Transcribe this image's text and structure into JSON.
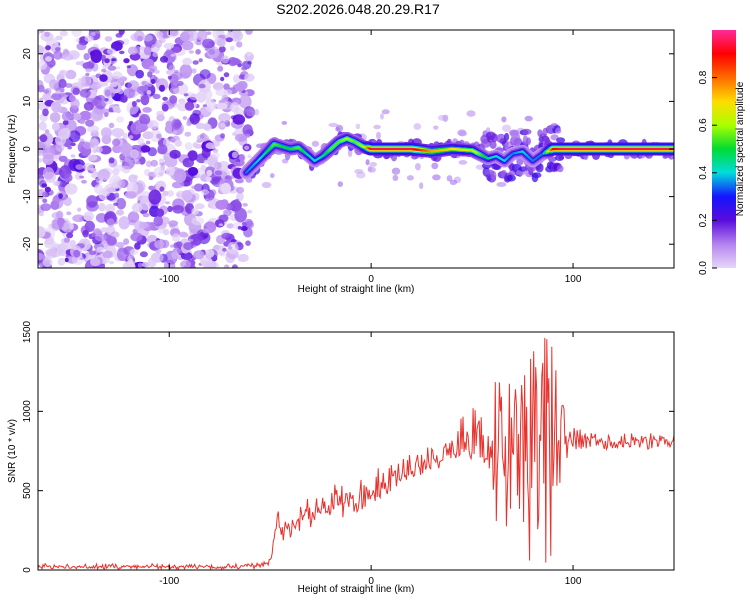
{
  "figure": {
    "title": "S202.2026.048.20.29.R17"
  },
  "chart_data": [
    {
      "type": "heatmap",
      "xlabel": "Height of straight line (km)",
      "ylabel": "Frequency (Hz)",
      "xlim": [
        -165,
        150
      ],
      "ylim": [
        -25,
        25
      ],
      "xticks": [
        -100,
        0,
        100
      ],
      "yticks": [
        -20,
        -10,
        0,
        10,
        20
      ],
      "colorbar": {
        "label": "Normalized spectral amplitude",
        "range": [
          0,
          1
        ],
        "ticks": [
          "0.0",
          "0.2",
          "0.4",
          "0.6",
          "0.8"
        ],
        "colors": [
          "#e6d7f7",
          "#b483f0",
          "#5a0cdc",
          "#1414ff",
          "#00dcdc",
          "#00dc32",
          "#aaff00",
          "#ffdc00",
          "#ff6a00",
          "#ff0000",
          "#ff2a9a"
        ]
      },
      "noise_region_x": [
        -165,
        -60
      ],
      "ridge": {
        "x": [
          -62,
          -55,
          -48,
          -44,
          -40,
          -36,
          -32,
          -28,
          -24,
          -20,
          -16,
          -12,
          -8,
          -4,
          0,
          20,
          30,
          40,
          50,
          58,
          62,
          66,
          70,
          75,
          80,
          85,
          90,
          95,
          150
        ],
        "freq": [
          -5,
          -2,
          1,
          0.5,
          0,
          0.3,
          -1,
          -2.5,
          -1.5,
          0,
          1.5,
          2.2,
          1.5,
          0.5,
          0,
          0,
          -0.5,
          0,
          -0.3,
          -2,
          -1.5,
          -2.5,
          -1,
          -0.5,
          -2.5,
          -1,
          0,
          0,
          0
        ],
        "amp": [
          0.35,
          0.4,
          0.55,
          0.5,
          0.5,
          0.55,
          0.45,
          0.4,
          0.45,
          0.55,
          0.55,
          0.6,
          0.55,
          0.6,
          0.95,
          0.95,
          0.75,
          0.7,
          0.65,
          0.45,
          0.4,
          0.4,
          0.35,
          0.4,
          0.35,
          0.35,
          0.9,
          0.95,
          0.95
        ]
      }
    },
    {
      "type": "line",
      "xlabel": "Height of straight line (km)",
      "ylabel": "SNR (10 * v/v)",
      "xlim": [
        -165,
        150
      ],
      "ylim": [
        0,
        1500
      ],
      "xticks": [
        -100,
        0,
        100
      ],
      "yticks": [
        0,
        500,
        1000,
        1500
      ],
      "series": [
        {
          "color": "#e8322d",
          "x": [
            -165,
            -65,
            -55,
            -50,
            -48,
            -46,
            -45,
            -40,
            -35,
            -30,
            -25,
            -20,
            -15,
            -10,
            -5,
            0,
            10,
            20,
            30,
            40,
            45,
            50,
            55,
            60,
            62,
            65,
            68,
            70,
            75,
            80,
            85,
            90,
            95,
            100,
            110,
            120,
            130,
            140,
            150
          ],
          "y": [
            20,
            20,
            30,
            60,
            200,
            370,
            260,
            300,
            320,
            350,
            380,
            400,
            420,
            450,
            430,
            470,
            550,
            620,
            690,
            740,
            770,
            780,
            790,
            800,
            750,
            800,
            820,
            820,
            850,
            850,
            850,
            850,
            830,
            820,
            830,
            800,
            810,
            820,
            800
          ],
          "envelope_hi": [
            40,
            40,
            50,
            80,
            230,
            380,
            320,
            360,
            420,
            470,
            500,
            530,
            560,
            590,
            600,
            620,
            680,
            740,
            790,
            840,
            980,
            1040,
            970,
            1100,
            1300,
            1230,
            1350,
            1250,
            1400,
            1500,
            1500,
            1450,
            1100,
            900,
            870,
            870,
            870,
            870,
            870
          ],
          "envelope_lo": [
            5,
            5,
            10,
            30,
            150,
            200,
            180,
            200,
            220,
            250,
            270,
            300,
            320,
            350,
            370,
            400,
            480,
            560,
            620,
            650,
            700,
            700,
            650,
            500,
            200,
            150,
            100,
            50,
            80,
            30,
            20,
            50,
            600,
            760,
            760,
            760,
            760,
            760,
            760
          ]
        }
      ]
    }
  ]
}
